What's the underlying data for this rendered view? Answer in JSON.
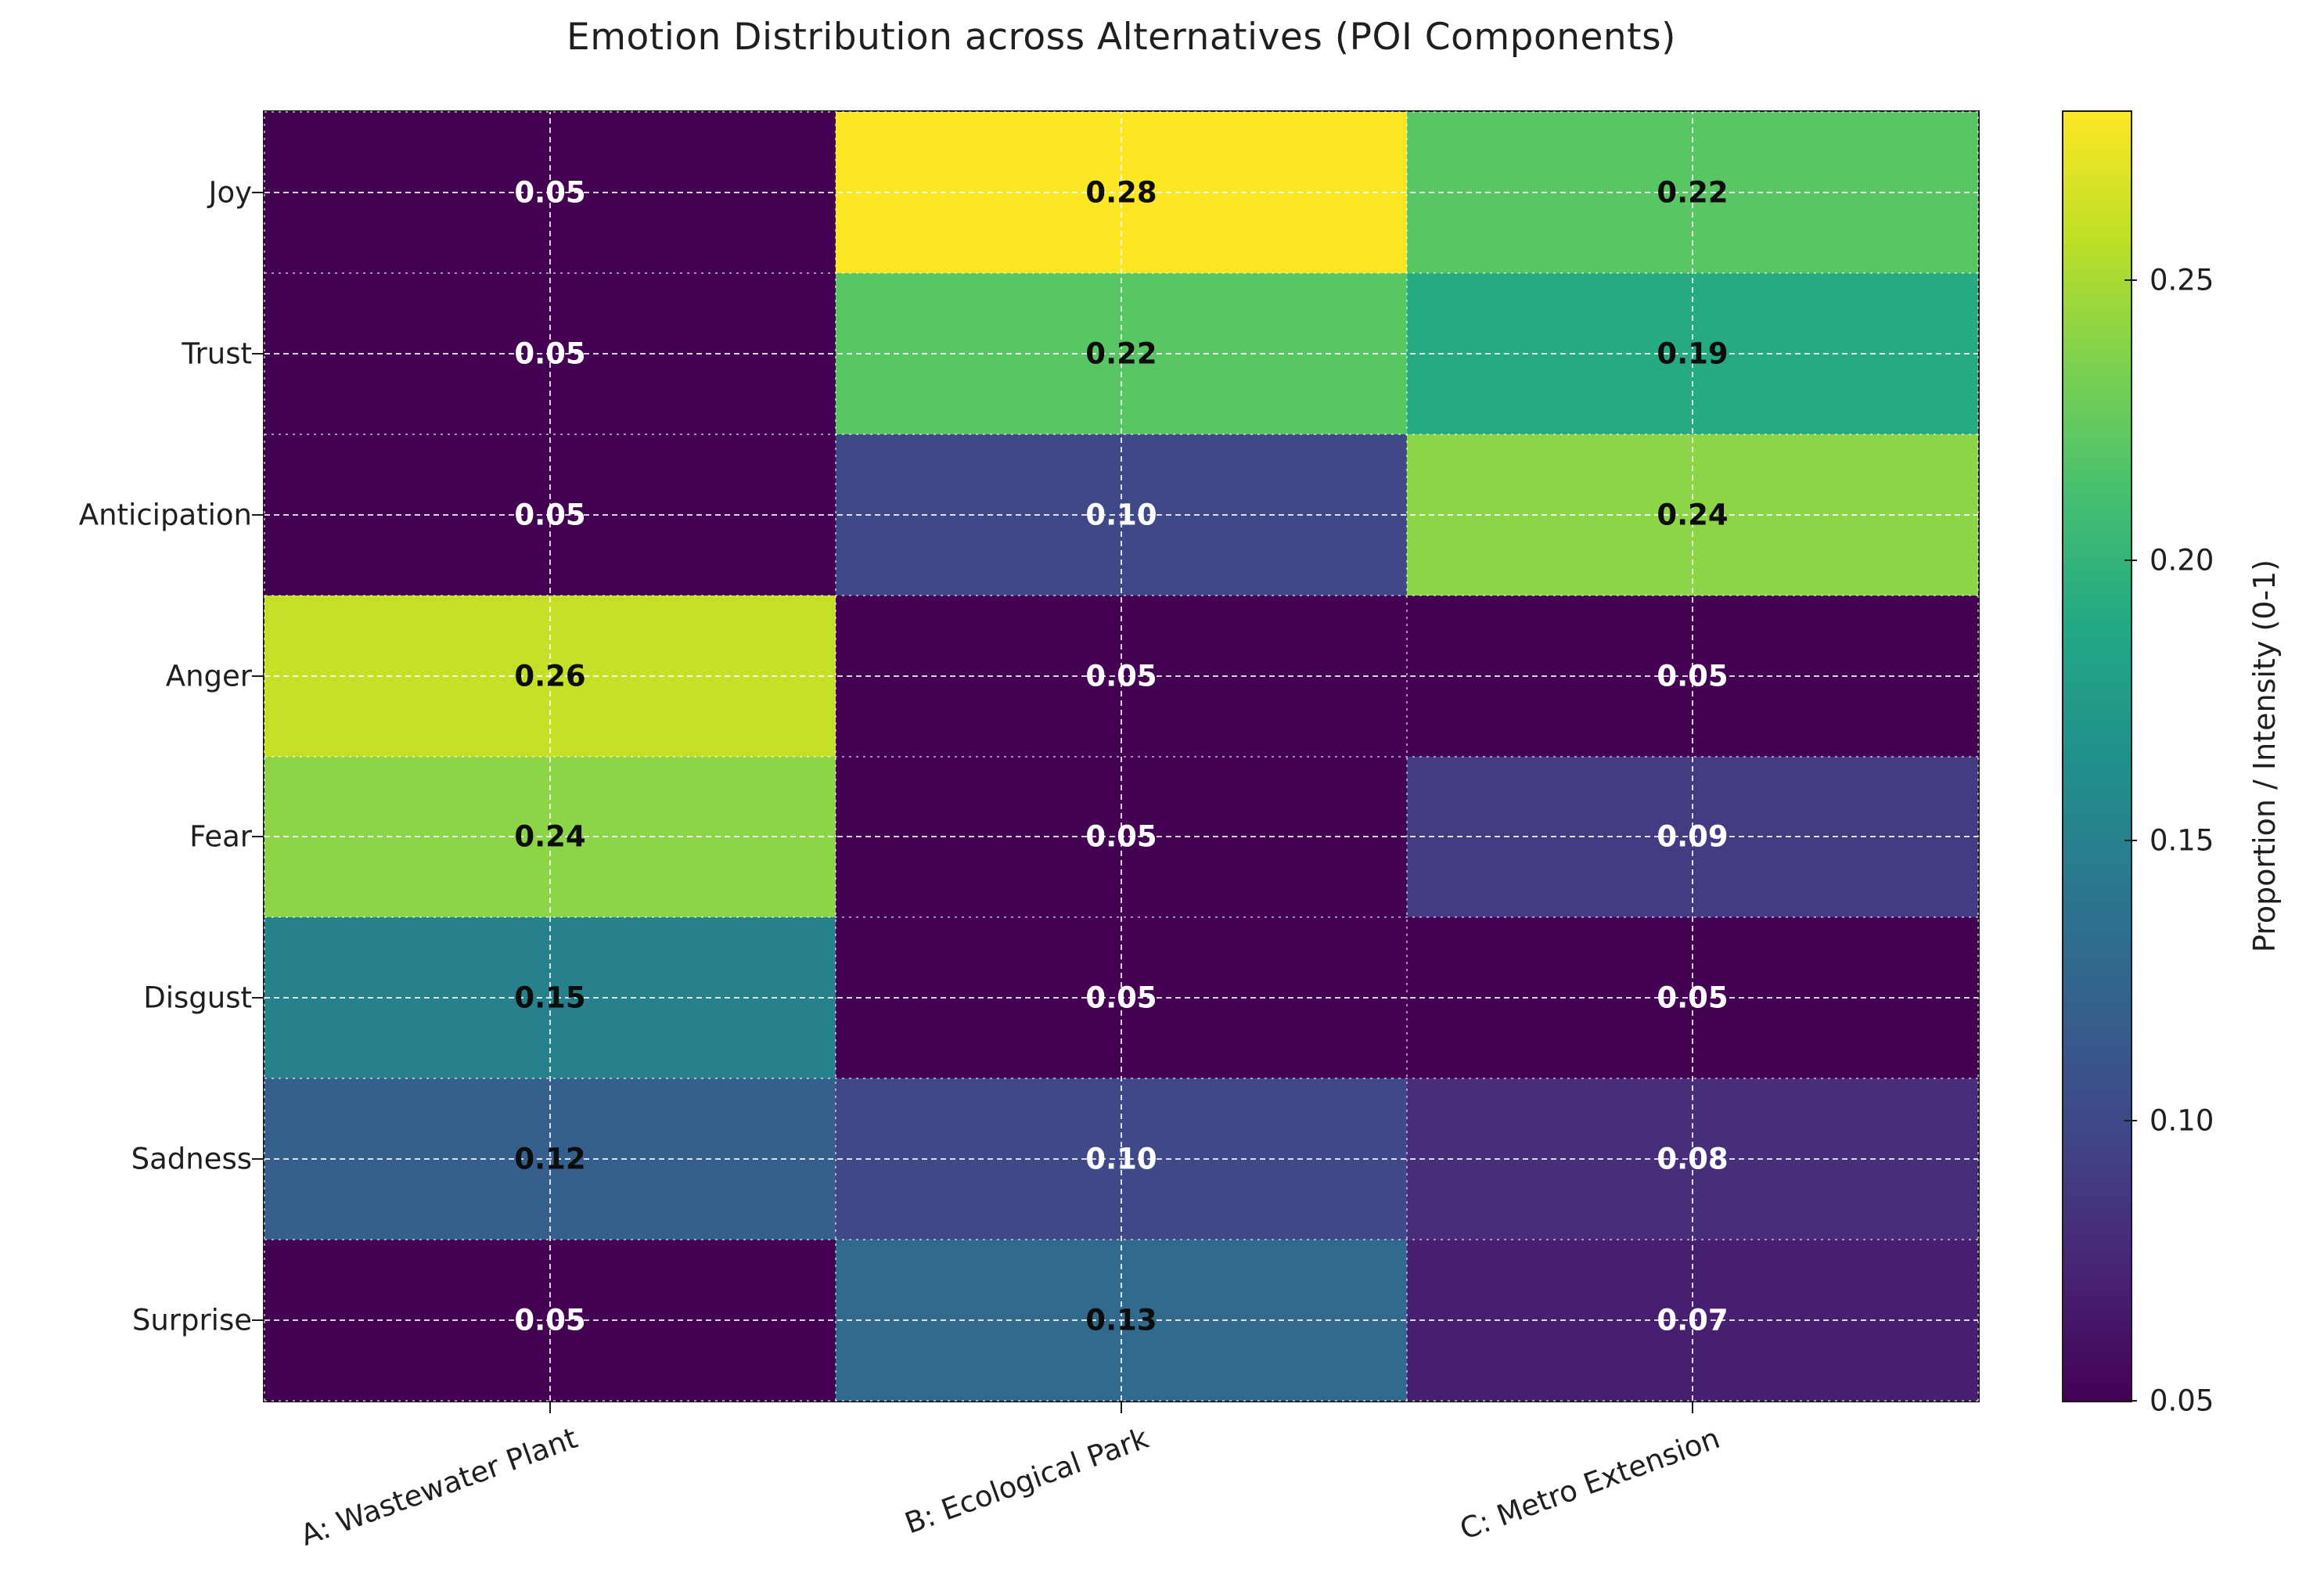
{
  "figure": {
    "title": "Emotion Distribution across Alternatives (POI Components)",
    "background": "#ffffff",
    "text_color": "#1f1f1f"
  },
  "chart_data": {
    "type": "heatmap",
    "title": "Emotion Distribution across Alternatives (POI Components)",
    "rows": [
      "Joy",
      "Trust",
      "Anticipation",
      "Anger",
      "Fear",
      "Disgust",
      "Sadness",
      "Surprise"
    ],
    "columns": [
      "A: Wastewater Plant",
      "B: Ecological Park",
      "C: Metro Extension"
    ],
    "values": [
      [
        0.05,
        0.28,
        0.22
      ],
      [
        0.05,
        0.22,
        0.19
      ],
      [
        0.05,
        0.1,
        0.24
      ],
      [
        0.26,
        0.05,
        0.05
      ],
      [
        0.24,
        0.05,
        0.09
      ],
      [
        0.15,
        0.05,
        0.05
      ],
      [
        0.12,
        0.1,
        0.08
      ],
      [
        0.05,
        0.13,
        0.07
      ]
    ],
    "value_format_decimals": 2,
    "colormap": "viridis",
    "vmin": 0.05,
    "vmax": 0.28,
    "label_white_below": 0.11,
    "grid": true,
    "x_tick_rotation_deg": 20,
    "colorbar": {
      "label": "Proportion / Intensity (0-1)",
      "ticks": [
        0.05,
        0.1,
        0.15,
        0.2,
        0.25
      ]
    }
  },
  "colors": {
    "cell_label_dark": "#0d0d0d",
    "cell_label_light": "#ffffff",
    "spine": "#1a1a1a",
    "grid_major": "rgba(255,255,255,0.82)",
    "grid_minor": "rgba(255,255,255,0.55)",
    "viridis_anchors": [
      [
        0.0,
        "#440154"
      ],
      [
        0.1,
        "#482475"
      ],
      [
        0.2,
        "#414487"
      ],
      [
        0.3,
        "#355f8d"
      ],
      [
        0.4,
        "#2a788e"
      ],
      [
        0.5,
        "#21918c"
      ],
      [
        0.6,
        "#22a884"
      ],
      [
        0.7,
        "#44bf70"
      ],
      [
        0.8,
        "#7ad151"
      ],
      [
        0.9,
        "#bddf26"
      ],
      [
        1.0,
        "#fde725"
      ]
    ]
  }
}
